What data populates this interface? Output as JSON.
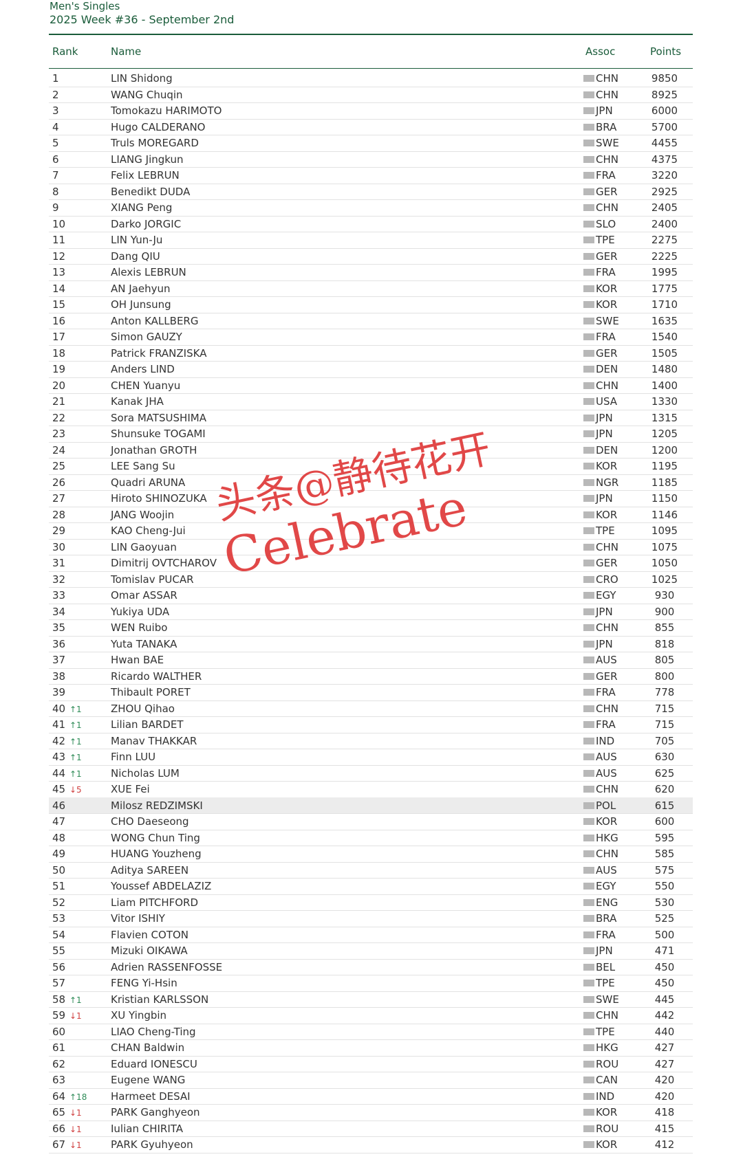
{
  "header": {
    "title": "Men's Singles",
    "subtitle": "2025 Week #36 - September 2nd"
  },
  "watermark": {
    "line1": "头条@静待花开",
    "line2": "Celebrate"
  },
  "table": {
    "columns": [
      "Rank",
      "Name",
      "Assoc",
      "Points"
    ],
    "rows": [
      [
        1,
        "LIN Shidong",
        "CHN",
        9850
      ],
      [
        2,
        "WANG Chuqin",
        "CHN",
        8925
      ],
      [
        3,
        "Tomokazu HARIMOTO",
        "JPN",
        6000
      ],
      [
        4,
        "Hugo CALDERANO",
        "BRA",
        5700
      ],
      [
        5,
        "Truls MOREGARD",
        "SWE",
        4455
      ],
      [
        6,
        "LIANG Jingkun",
        "CHN",
        4375
      ],
      [
        7,
        "Felix LEBRUN",
        "FRA",
        3220
      ],
      [
        8,
        "Benedikt DUDA",
        "GER",
        2925
      ],
      [
        9,
        "XIANG Peng",
        "CHN",
        2405
      ],
      [
        10,
        "Darko JORGIC",
        "SLO",
        2400
      ],
      [
        11,
        "LIN Yun-Ju",
        "TPE",
        2275
      ],
      [
        12,
        "Dang QIU",
        "GER",
        2225
      ],
      [
        13,
        "Alexis LEBRUN",
        "FRA",
        1995
      ],
      [
        14,
        "AN Jaehyun",
        "KOR",
        1775
      ],
      [
        15,
        "OH Junsung",
        "KOR",
        1710
      ],
      [
        16,
        "Anton KALLBERG",
        "SWE",
        1635
      ],
      [
        17,
        "Simon GAUZY",
        "FRA",
        1540
      ],
      [
        18,
        "Patrick FRANZISKA",
        "GER",
        1505
      ],
      [
        19,
        "Anders LIND",
        "DEN",
        1480
      ],
      [
        20,
        "CHEN Yuanyu",
        "CHN",
        1400
      ],
      [
        21,
        "Kanak JHA",
        "USA",
        1330
      ],
      [
        22,
        "Sora MATSUSHIMA",
        "JPN",
        1315
      ],
      [
        23,
        "Shunsuke TOGAMI",
        "JPN",
        1205
      ],
      [
        24,
        "Jonathan GROTH",
        "DEN",
        1200
      ],
      [
        25,
        "LEE Sang Su",
        "KOR",
        1195
      ],
      [
        26,
        "Quadri ARUNA",
        "NGR",
        1185
      ],
      [
        27,
        "Hiroto SHINOZUKA",
        "JPN",
        1150
      ],
      [
        28,
        "JANG Woojin",
        "KOR",
        1146
      ],
      [
        29,
        "KAO Cheng-Jui",
        "TPE",
        1095
      ],
      [
        30,
        "LIN Gaoyuan",
        "CHN",
        1075
      ],
      [
        31,
        "Dimitrij OVTCHAROV",
        "GER",
        1050
      ],
      [
        32,
        "Tomislav PUCAR",
        "CRO",
        1025
      ],
      [
        33,
        "Omar ASSAR",
        "EGY",
        930
      ],
      [
        34,
        "Yukiya UDA",
        "JPN",
        900
      ],
      [
        35,
        "WEN Ruibo",
        "CHN",
        855
      ],
      [
        36,
        "Yuta TANAKA",
        "JPN",
        818
      ],
      [
        37,
        "Hwan BAE",
        "AUS",
        805
      ],
      [
        38,
        "Ricardo WALTHER",
        "GER",
        800
      ],
      [
        39,
        "Thibault PORET",
        "FRA",
        778
      ],
      [
        40,
        "ZHOU Qihao",
        "CHN",
        715,
        "↑1"
      ],
      [
        41,
        "Lilian BARDET",
        "FRA",
        715,
        "↑1"
      ],
      [
        42,
        "Manav THAKKAR",
        "IND",
        705,
        "↑1"
      ],
      [
        43,
        "Finn LUU",
        "AUS",
        630,
        "↑1"
      ],
      [
        44,
        "Nicholas LUM",
        "AUS",
        625,
        "↑1"
      ],
      [
        45,
        "XUE Fei",
        "CHN",
        620,
        "↓5"
      ],
      [
        46,
        "Milosz REDZIMSKI",
        "POL",
        615
      ],
      [
        47,
        "CHO Daeseong",
        "KOR",
        600
      ],
      [
        48,
        "WONG Chun Ting",
        "HKG",
        595
      ],
      [
        49,
        "HUANG Youzheng",
        "CHN",
        585
      ],
      [
        50,
        "Aditya SAREEN",
        "AUS",
        575
      ],
      [
        51,
        "Youssef ABDELAZIZ",
        "EGY",
        550
      ],
      [
        52,
        "Liam PITCHFORD",
        "ENG",
        530
      ],
      [
        53,
        "Vitor ISHIY",
        "BRA",
        525
      ],
      [
        54,
        "Flavien COTON",
        "FRA",
        500
      ],
      [
        55,
        "Mizuki OIKAWA",
        "JPN",
        471
      ],
      [
        56,
        "Adrien RASSENFOSSE",
        "BEL",
        450
      ],
      [
        57,
        "FENG Yi-Hsin",
        "TPE",
        450
      ],
      [
        58,
        "Kristian KARLSSON",
        "SWE",
        445,
        "↑1"
      ],
      [
        59,
        "XU Yingbin",
        "CHN",
        442,
        "↓1"
      ],
      [
        60,
        "LIAO Cheng-Ting",
        "TPE",
        440
      ],
      [
        61,
        "CHAN Baldwin",
        "HKG",
        427
      ],
      [
        62,
        "Eduard IONESCU",
        "ROU",
        427
      ],
      [
        63,
        "Eugene WANG",
        "CAN",
        420
      ],
      [
        64,
        "Harmeet DESAI",
        "IND",
        420,
        "↑18"
      ],
      [
        65,
        "PARK Ganghyeon",
        "KOR",
        418,
        "↓1"
      ],
      [
        66,
        "Iulian CHIRITA",
        "ROU",
        415,
        "↓1"
      ],
      [
        67,
        "PARK Gyuhyeon",
        "KOR",
        412,
        "↓1"
      ]
    ]
  }
}
